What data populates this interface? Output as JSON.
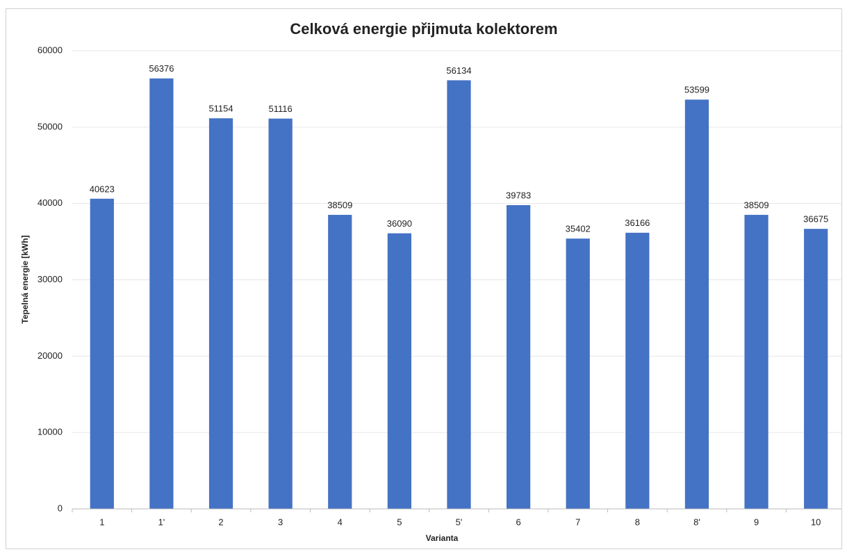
{
  "chart_data": {
    "type": "bar",
    "title": "Celková energie přijmuta kolektorem",
    "x_label": "Varianta",
    "y_label": "Tepelná energie [kWh]",
    "categories": [
      "1",
      "1'",
      "2",
      "3",
      "4",
      "5",
      "5'",
      "6",
      "7",
      "8",
      "8'",
      "9",
      "10"
    ],
    "values": [
      40623,
      56376,
      51154,
      51116,
      38509,
      36090,
      56134,
      39783,
      35402,
      36166,
      53599,
      38509,
      36675
    ],
    "color": "#4472c4",
    "ylim": [
      0,
      60000
    ],
    "yticks": [
      0,
      10000,
      20000,
      30000,
      40000,
      50000,
      60000
    ],
    "grid": true
  }
}
